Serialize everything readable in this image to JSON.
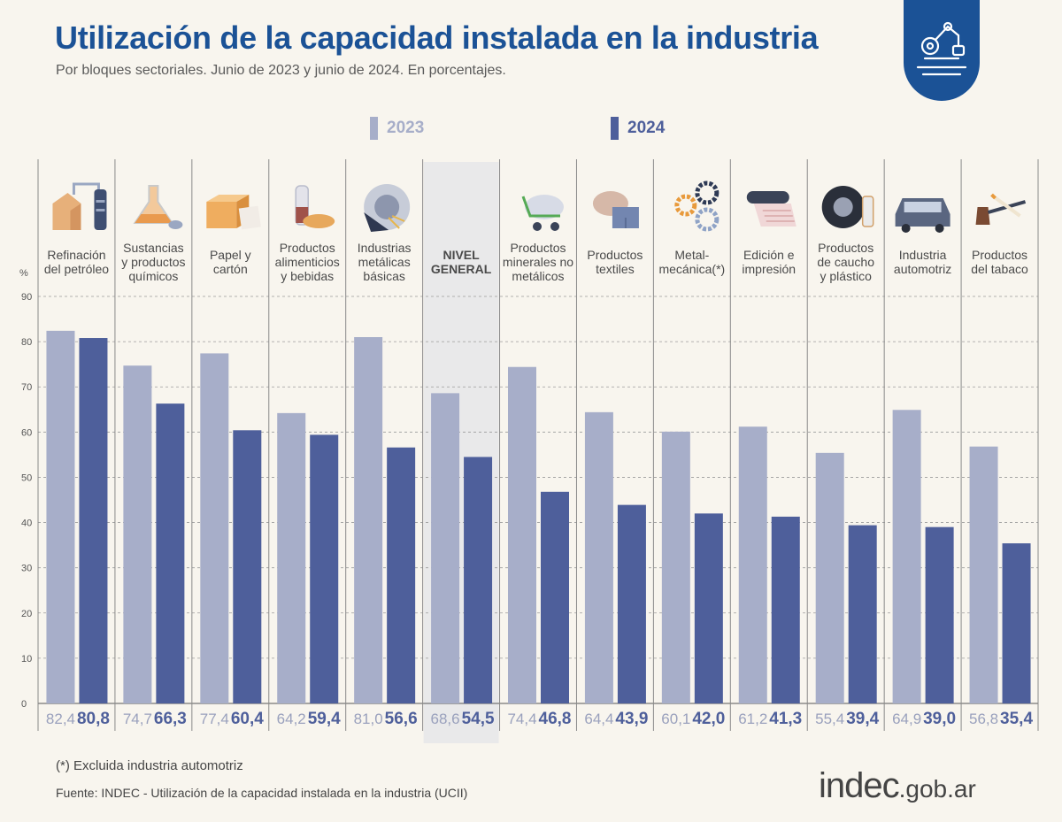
{
  "header": {
    "title": "Utilización de la capacidad instalada en la industria",
    "subtitle": "Por bloques sectoriales. Junio de 2023 y junio de 2024. En porcentajes."
  },
  "colors": {
    "accent": "#1b5296",
    "series_2023": "#a7aec9",
    "series_2024": "#4e5f9b",
    "highlight_bg": "#e9e9ea",
    "background": "#f8f5ee"
  },
  "chart_data": {
    "type": "bar",
    "title": "Utilización de la capacidad instalada en la industria",
    "ylabel": "%",
    "xlabel": "",
    "ylim": [
      0,
      90
    ],
    "yticks": [
      0,
      10,
      20,
      30,
      40,
      50,
      60,
      70,
      80,
      90
    ],
    "grid": true,
    "legend_position": "top-center",
    "highlight_category": "NIVEL GENERAL",
    "categories": [
      [
        "Refinación",
        "del petróleo"
      ],
      [
        "Sustancias",
        "y productos",
        "químicos"
      ],
      [
        "Papel y",
        "cartón"
      ],
      [
        "Productos",
        "alimenticios",
        "y bebidas"
      ],
      [
        "Industrias",
        "metálicas",
        "básicas"
      ],
      [
        "NIVEL",
        "GENERAL"
      ],
      [
        "Productos",
        "minerales no",
        "metálicos"
      ],
      [
        "Productos",
        "textiles"
      ],
      [
        "Metal-",
        "mecánica(*)"
      ],
      [
        "Edición e",
        "impresión"
      ],
      [
        "Productos",
        "de caucho",
        "y plástico"
      ],
      [
        "Industria",
        "automotriz"
      ],
      [
        "Productos",
        "del tabaco"
      ]
    ],
    "series": [
      {
        "name": "2023",
        "values": [
          82.4,
          74.7,
          77.4,
          64.2,
          81.0,
          68.6,
          74.4,
          64.4,
          60.1,
          61.2,
          55.4,
          64.9,
          56.8
        ],
        "labels": [
          "82,4",
          "74,7",
          "77,4",
          "64,2",
          "81,0",
          "68,6",
          "74,4",
          "64,4",
          "60,1",
          "61,2",
          "55,4",
          "64,9",
          "56,8"
        ]
      },
      {
        "name": "2024",
        "values": [
          80.8,
          66.3,
          60.4,
          59.4,
          56.6,
          54.5,
          46.8,
          43.9,
          42.0,
          41.3,
          39.4,
          39.0,
          35.4
        ],
        "labels": [
          "80,8",
          "66,3",
          "60,4",
          "59,4",
          "56,6",
          "54,5",
          "46,8",
          "43,9",
          "42,0",
          "41,3",
          "39,4",
          "39,0",
          "35,4"
        ]
      }
    ]
  },
  "icons": [
    "refinery-icon",
    "chemistry-flask-icon",
    "paper-box-icon",
    "food-bottle-bread-icon",
    "metal-saw-icon",
    "none",
    "cement-mixer-icon",
    "textile-spool-icon",
    "gears-icon",
    "printing-roll-icon",
    "tire-icon",
    "car-icon",
    "tobacco-pipe-icon"
  ],
  "footer": {
    "footnote": "(*) Excluida industria automotriz",
    "source": "Fuente: INDEC - Utilización de la capacidad instalada en la industria (UCII)",
    "brand_main": "indec",
    "brand_suffix": ".gob.ar"
  }
}
